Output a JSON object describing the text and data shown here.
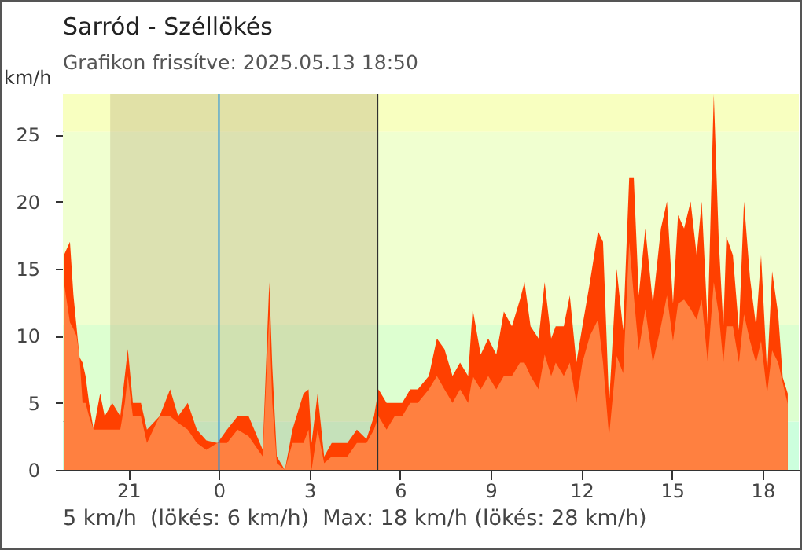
{
  "chart_data": {
    "type": "area",
    "title": "Sarród - Széllökés",
    "subtitle": "Grafikon frissítve: 2025.05.13 18:50",
    "ylabel": "km/h",
    "annotations": [
      "5 km/h  (lökés: 6 km/h)  Max: 18 km/h (lökés: 28 km/h)"
    ],
    "x": [
      "2025-05-12T18:52",
      "2025-05-12T19:04",
      "2025-05-12T19:11",
      "2025-05-12T19:17",
      "2025-05-12T19:23",
      "2025-05-12T19:29",
      "2025-05-12T19:35",
      "2025-05-12T19:42",
      "2025-05-12T19:51",
      "2025-05-12T20:04",
      "2025-05-12T20:13",
      "2025-05-12T20:28",
      "2025-05-12T20:44",
      "2025-05-12T20:53",
      "2025-05-12T20:59",
      "2025-05-12T21:09",
      "2025-05-12T21:25",
      "2025-05-12T21:37",
      "2025-05-12T22:02",
      "2025-05-12T22:23",
      "2025-05-12T22:39",
      "2025-05-12T22:58",
      "2025-05-12T23:16",
      "2025-05-12T23:35",
      "2025-05-12T23:57",
      "2025-05-13T00:16",
      "2025-05-13T00:37",
      "2025-05-13T00:59",
      "2025-05-13T01:27",
      "2025-05-13T01:40",
      "2025-05-13T01:46",
      "2025-05-13T01:55",
      "2025-05-13T02:11",
      "2025-05-13T02:26",
      "2025-05-13T02:48",
      "2025-05-13T02:58",
      "2025-05-13T03:04",
      "2025-05-13T03:16",
      "2025-05-13T03:29",
      "2025-05-13T03:44",
      "2025-05-13T03:59",
      "2025-05-13T04:15",
      "2025-05-13T04:34",
      "2025-05-13T04:53",
      "2025-05-13T05:08",
      "2025-05-13T05:17",
      "2025-05-13T05:33",
      "2025-05-13T05:49",
      "2025-05-13T06:04",
      "2025-05-13T06:20",
      "2025-05-13T06:35",
      "2025-05-13T06:57",
      "2025-05-13T07:13",
      "2025-05-13T07:28",
      "2025-05-13T07:44",
      "2025-05-13T07:59",
      "2025-05-13T08:15",
      "2025-05-13T08:24",
      "2025-05-13T08:40",
      "2025-05-13T08:55",
      "2025-05-13T09:11",
      "2025-05-13T09:26",
      "2025-05-13T09:42",
      "2025-05-13T09:58",
      "2025-05-13T10:07",
      "2025-05-13T10:19",
      "2025-05-13T10:35",
      "2025-05-13T10:47",
      "2025-05-13T11:00",
      "2025-05-13T11:09",
      "2025-05-13T11:25",
      "2025-05-13T11:37",
      "2025-05-13T11:50",
      "2025-05-13T12:02",
      "2025-05-13T12:17",
      "2025-05-13T12:33",
      "2025-05-13T12:43",
      "2025-05-13T12:55",
      "2025-05-13T13:10",
      "2025-05-13T13:23",
      "2025-05-13T13:35",
      "2025-05-13T13:44",
      "2025-05-13T13:54",
      "2025-05-13T14:07",
      "2025-05-13T14:22",
      "2025-05-13T14:38",
      "2025-05-13T14:50",
      "2025-05-13T15:02",
      "2025-05-13T15:12",
      "2025-05-13T15:24",
      "2025-05-13T15:37",
      "2025-05-13T15:49",
      "2025-05-13T15:59",
      "2025-05-13T16:11",
      "2025-05-13T16:23",
      "2025-05-13T16:33",
      "2025-05-13T16:42",
      "2025-05-13T16:48",
      "2025-05-13T17:01",
      "2025-05-13T17:13",
      "2025-05-13T17:23",
      "2025-05-13T17:35",
      "2025-05-13T17:47",
      "2025-05-13T17:57",
      "2025-05-13T18:09",
      "2025-05-13T18:19",
      "2025-05-13T18:31",
      "2025-05-13T18:40",
      "2025-05-13T18:50"
    ],
    "series": [
      {
        "color": "#ff4000",
        "values": [
          16,
          17,
          13,
          10.7,
          8.4,
          8,
          7,
          5,
          3,
          5.7,
          4,
          5,
          4,
          7,
          9,
          5,
          5,
          3,
          4,
          6,
          4,
          5,
          3,
          2.2,
          2,
          3,
          4,
          4,
          1.5,
          14,
          7.7,
          1,
          0,
          3,
          5.7,
          6,
          2,
          5.7,
          1,
          2,
          2,
          2,
          3,
          2.3,
          4,
          6,
          5,
          5,
          5,
          6,
          6,
          7,
          9.8,
          9,
          7,
          8,
          7,
          12,
          8.6,
          9.8,
          8.6,
          11.8,
          10.7,
          12.7,
          14,
          10.7,
          9.8,
          14,
          9.8,
          10.7,
          10.7,
          13,
          8,
          10.7,
          14,
          17.8,
          17,
          4.9,
          15,
          10.4,
          21.8,
          21.8,
          13,
          18,
          12.4,
          18,
          20,
          12.4,
          19,
          18,
          20,
          16,
          20,
          10.7,
          28,
          17,
          10.7,
          17.4,
          16,
          10.4,
          20,
          14.3,
          10.7,
          16,
          7.2,
          14.8,
          11.6,
          6.9,
          5.7
        ]
      },
      {
        "color": "#ff8040",
        "values": [
          14,
          11,
          10.5,
          10,
          8.5,
          5,
          5,
          4,
          3,
          3,
          3,
          3,
          3,
          5,
          7,
          4,
          4,
          2,
          4,
          4,
          3.5,
          3,
          2,
          1.5,
          2,
          2,
          3,
          2.5,
          1,
          11.6,
          5,
          0.5,
          0,
          2,
          2,
          3,
          0,
          3,
          0.5,
          1,
          1,
          1,
          2,
          2,
          3,
          4,
          3,
          4,
          4,
          5,
          5,
          6,
          7,
          6,
          5,
          6,
          5,
          7,
          6,
          7,
          6,
          7,
          7,
          8,
          8,
          7,
          6,
          8.6,
          7,
          8,
          7,
          8,
          5,
          8,
          10,
          11.2,
          8,
          2.5,
          8.5,
          7.2,
          17,
          13,
          8.9,
          12,
          8,
          10.7,
          13,
          9.6,
          12.4,
          12.7,
          12,
          11.2,
          12.7,
          8,
          14,
          11.6,
          8,
          10.7,
          10.7,
          8,
          11.6,
          9.6,
          8,
          9.6,
          5.7,
          8.9,
          8,
          6.5,
          4.9
        ]
      }
    ],
    "xlim": [
      "2025-05-12T18:50",
      "2025-05-13T19:12"
    ],
    "xticks": [
      {
        "value": "2025-05-12T21:00",
        "label": "21"
      },
      {
        "value": "2025-05-13T00:00",
        "label": "0"
      },
      {
        "value": "2025-05-13T03:00",
        "label": "3"
      },
      {
        "value": "2025-05-13T06:00",
        "label": "6"
      },
      {
        "value": "2025-05-13T09:00",
        "label": "9"
      },
      {
        "value": "2025-05-13T12:00",
        "label": "12"
      },
      {
        "value": "2025-05-13T15:00",
        "label": "15"
      },
      {
        "value": "2025-05-13T18:00",
        "label": "18"
      }
    ],
    "ylim": [
      0,
      28
    ],
    "yticks": [
      0,
      5,
      10,
      15,
      20,
      25
    ],
    "bands": [
      {
        "axis": "y",
        "from": 0,
        "to": 3.6,
        "color": "#ccffdd"
      },
      {
        "axis": "y",
        "from": 3.6,
        "to": 10.8,
        "color": "#ddffd0"
      },
      {
        "axis": "y",
        "from": 10.8,
        "to": 25.2,
        "color": "#f0ffd0"
      },
      {
        "axis": "y",
        "from": 25.2,
        "to": 28,
        "color": "#f8ffc0"
      },
      {
        "axis": "x",
        "from": "2025-05-12T20:24",
        "to": "2025-05-13T05:15",
        "color": "#b8a878"
      }
    ],
    "ref_lines": [
      {
        "axis": "x",
        "value": "2025-05-13T00:00",
        "color": "#2090e0"
      },
      {
        "axis": "x",
        "value": "2025-05-13T05:15",
        "color": "#303030"
      }
    ]
  }
}
